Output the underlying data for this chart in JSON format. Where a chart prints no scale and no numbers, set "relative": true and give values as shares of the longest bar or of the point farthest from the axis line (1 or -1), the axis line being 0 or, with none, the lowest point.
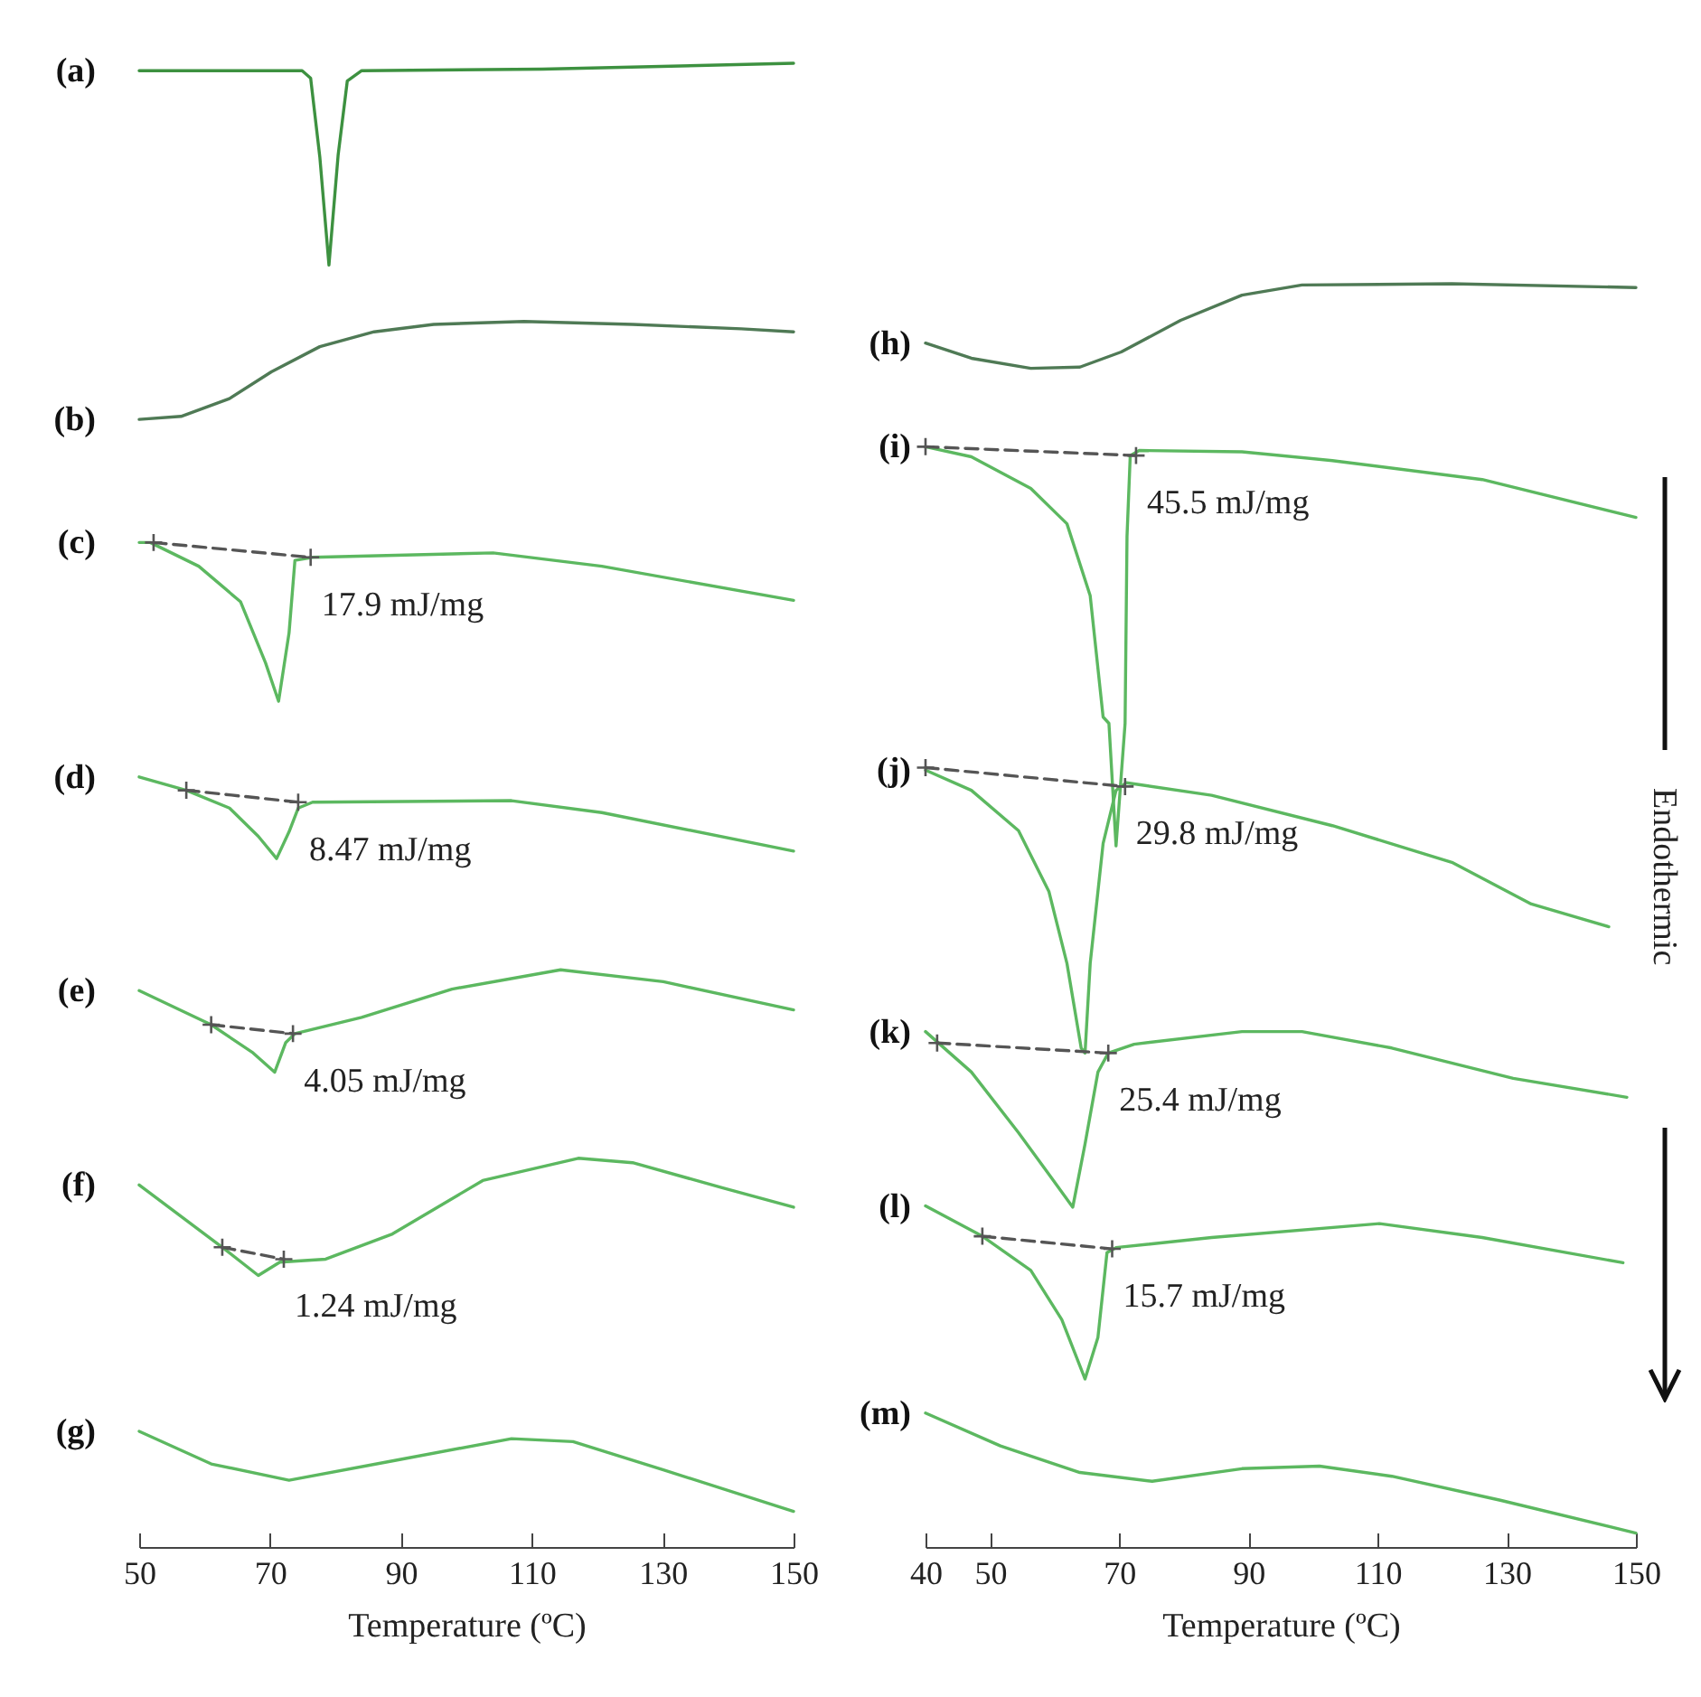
{
  "chart_data": [
    {
      "type": "line",
      "xlabel": "Temperature (ºC)",
      "xlim": [
        50,
        150
      ],
      "xticks": [
        50,
        70,
        90,
        110,
        130,
        150
      ],
      "relative": true,
      "tick_labels": "x",
      "series": [
        {
          "name": "(a)",
          "color": "#3d9140",
          "x": [
            50,
            74.9,
            76.2,
            77.6,
            79,
            80.4,
            81.8,
            84,
            111.6,
            150
          ],
          "values": [
            0.995,
            0.995,
            0.99,
            0.937,
            0.864,
            0.938,
            0.988,
            0.995,
            0.996,
            1
          ]
        },
        {
          "name": "(b)",
          "color": "#4f7a55",
          "x": [
            50,
            56.4,
            63.8,
            70.2,
            77.6,
            85.9,
            95,
            108.8,
            125.4,
            142,
            150
          ],
          "values": [
            0.76,
            0.762,
            0.774,
            0.792,
            0.809,
            0.819,
            0.824,
            0.826,
            0.824,
            0.821,
            0.819
          ]
        },
        {
          "name": "(c)",
          "color": "#5cb860",
          "x": [
            50,
            51.7,
            59.1,
            65.5,
            69.3,
            71.3,
            72.9,
            73.8,
            76.5,
            104.1,
            120.7,
            150
          ],
          "values": [
            0.677,
            0.677,
            0.661,
            0.637,
            0.596,
            0.57,
            0.616,
            0.665,
            0.667,
            0.67,
            0.661,
            0.638
          ]
        },
        {
          "type": "line",
          "color": "#555555",
          "line_style": "dashed",
          "marker": "cross",
          "x": [
            52.2,
            76.2
          ],
          "values": [
            0.677,
            0.667
          ]
        },
        {
          "name": "(d)",
          "color": "#5cb860",
          "x": [
            50,
            57.2,
            63.8,
            68.2,
            71,
            72.9,
            74.3,
            76.5,
            106.9,
            120.7,
            150
          ],
          "values": [
            0.519,
            0.51,
            0.498,
            0.479,
            0.464,
            0.482,
            0.498,
            0.502,
            0.503,
            0.495,
            0.469
          ]
        },
        {
          "type": "line",
          "color": "#555555",
          "line_style": "dashed",
          "marker": "cross",
          "x": [
            57.2,
            74.3
          ],
          "values": [
            0.51,
            0.502
          ]
        },
        {
          "name": "(e)",
          "color": "#5cb860",
          "x": [
            50,
            61,
            67.4,
            70.7,
            72.4,
            73.8,
            84,
            97.8,
            114.4,
            130.1,
            150
          ],
          "values": [
            0.375,
            0.352,
            0.333,
            0.32,
            0.34,
            0.346,
            0.357,
            0.376,
            0.389,
            0.381,
            0.362
          ]
        },
        {
          "type": "line",
          "color": "#555555",
          "line_style": "dashed",
          "marker": "cross",
          "x": [
            61,
            73.5
          ],
          "values": [
            0.352,
            0.346
          ]
        },
        {
          "name": "(f)",
          "color": "#5cb860",
          "x": [
            50,
            62.7,
            68.2,
            71.5,
            78.5,
            88.7,
            102.5,
            117.1,
            125.4,
            139.2,
            150
          ],
          "values": [
            0.244,
            0.202,
            0.183,
            0.192,
            0.194,
            0.211,
            0.247,
            0.262,
            0.259,
            0.242,
            0.229
          ]
        },
        {
          "type": "line",
          "color": "#555555",
          "line_style": "dashed",
          "marker": "cross",
          "x": [
            62.7,
            72.1
          ],
          "values": [
            0.202,
            0.194
          ]
        },
        {
          "name": "(g)",
          "color": "#5cb860",
          "x": [
            50,
            61,
            72.9,
            88.7,
            106.9,
            116.3,
            130.1,
            150
          ],
          "values": [
            0.078,
            0.056,
            0.045,
            0.058,
            0.073,
            0.071,
            0.052,
            0.024
          ]
        }
      ],
      "annotations": [
        {
          "text": "17.9 mJ/mg",
          "x": 76.2,
          "y": 0.667
        },
        {
          "text": "8.47 mJ/mg",
          "x": 74.3,
          "y": 0.502
        },
        {
          "text": "4.05 mJ/mg",
          "x": 73.5,
          "y": 0.346
        },
        {
          "text": "1.24 mJ/mg",
          "x": 72.1,
          "y": 0.194
        }
      ]
    },
    {
      "type": "line",
      "xlabel": "Temperature (ºC)",
      "xlim": [
        40,
        150
      ],
      "xticks": [
        40,
        50,
        70,
        90,
        110,
        130,
        150
      ],
      "relative": true,
      "tick_labels": "x",
      "series": [
        {
          "name": "(h)",
          "color": "#4f7a55",
          "x": [
            40,
            47.1,
            56.3,
            63.9,
            70.3,
            79.5,
            89,
            98.3,
            121.5,
            150
          ],
          "values": [
            0.953,
            0.941,
            0.933,
            0.934,
            0.946,
            0.971,
            0.991,
            0.999,
            1,
            0.997
          ]
        },
        {
          "name": "(i)",
          "color": "#5cb860",
          "x": [
            40,
            47.1,
            56.3,
            61.9,
            65.5,
            67.5,
            68.4,
            69.5,
            70.9,
            71.2,
            71.7,
            73.1,
            89,
            103,
            126.2,
            150
          ],
          "values": [
            0.871,
            0.863,
            0.838,
            0.81,
            0.753,
            0.657,
            0.652,
            0.555,
            0.652,
            0.8,
            0.864,
            0.868,
            0.867,
            0.86,
            0.845,
            0.815
          ]
        },
        {
          "type": "line",
          "color": "#555555",
          "line_style": "dashed",
          "marker": "cross",
          "x": [
            40,
            72.6
          ],
          "values": [
            0.871,
            0.864
          ]
        },
        {
          "name": "(j)",
          "color": "#5cb860",
          "x": [
            40,
            47.1,
            54.4,
            59.1,
            61.9,
            64.1,
            64.7,
            65.5,
            67.5,
            69.5,
            71.1,
            84.3,
            103,
            121.5,
            133.8,
            145.8
          ],
          "values": [
            0.615,
            0.599,
            0.567,
            0.519,
            0.462,
            0.395,
            0.391,
            0.462,
            0.557,
            0.599,
            0.605,
            0.595,
            0.571,
            0.542,
            0.509,
            0.491
          ]
        },
        {
          "type": "line",
          "color": "#555555",
          "line_style": "dashed",
          "marker": "cross",
          "x": [
            40,
            70.9
          ],
          "values": [
            0.617,
            0.602
          ]
        },
        {
          "name": "(k)",
          "color": "#5cb860",
          "x": [
            40,
            47.1,
            54.4,
            59.1,
            62.8,
            64.7,
            66.7,
            68.3,
            72.3,
            89,
            98.3,
            112.2,
            131,
            148.6
          ],
          "values": [
            0.408,
            0.376,
            0.328,
            0.295,
            0.269,
            0.319,
            0.376,
            0.391,
            0.398,
            0.408,
            0.408,
            0.395,
            0.371,
            0.356
          ]
        },
        {
          "type": "line",
          "color": "#555555",
          "line_style": "dashed",
          "marker": "cross",
          "x": [
            41.8,
            68.3
          ],
          "values": [
            0.399,
            0.391
          ]
        },
        {
          "name": "(l)",
          "color": "#5cb860",
          "x": [
            40,
            48.8,
            56.3,
            61.1,
            64.7,
            66.7,
            68.1,
            69.5,
            84.3,
            110.3,
            126.2,
            148
          ],
          "values": [
            0.27,
            0.246,
            0.219,
            0.18,
            0.133,
            0.166,
            0.233,
            0.237,
            0.245,
            0.256,
            0.245,
            0.225
          ]
        },
        {
          "type": "line",
          "color": "#555555",
          "line_style": "dashed",
          "marker": "cross",
          "x": [
            48.8,
            68.9
          ],
          "values": [
            0.246,
            0.236
          ]
        },
        {
          "name": "(m)",
          "color": "#5cb860",
          "x": [
            40,
            51.6,
            63.9,
            75.1,
            89,
            101,
            112.2,
            129,
            150
          ],
          "values": [
            0.106,
            0.08,
            0.059,
            0.052,
            0.062,
            0.064,
            0.056,
            0.037,
            0.011
          ]
        }
      ],
      "annotations": [
        {
          "text": "45.5 mJ/mg",
          "x": 72.6,
          "y": 0.864
        },
        {
          "text": "29.8 mJ/mg",
          "x": 70.9,
          "y": 0.602
        },
        {
          "text": "25.4 mJ/mg",
          "x": 68.3,
          "y": 0.391
        },
        {
          "text": "15.7 mJ/mg",
          "x": 68.9,
          "y": 0.236
        },
        "Endothermic"
      ]
    }
  ]
}
